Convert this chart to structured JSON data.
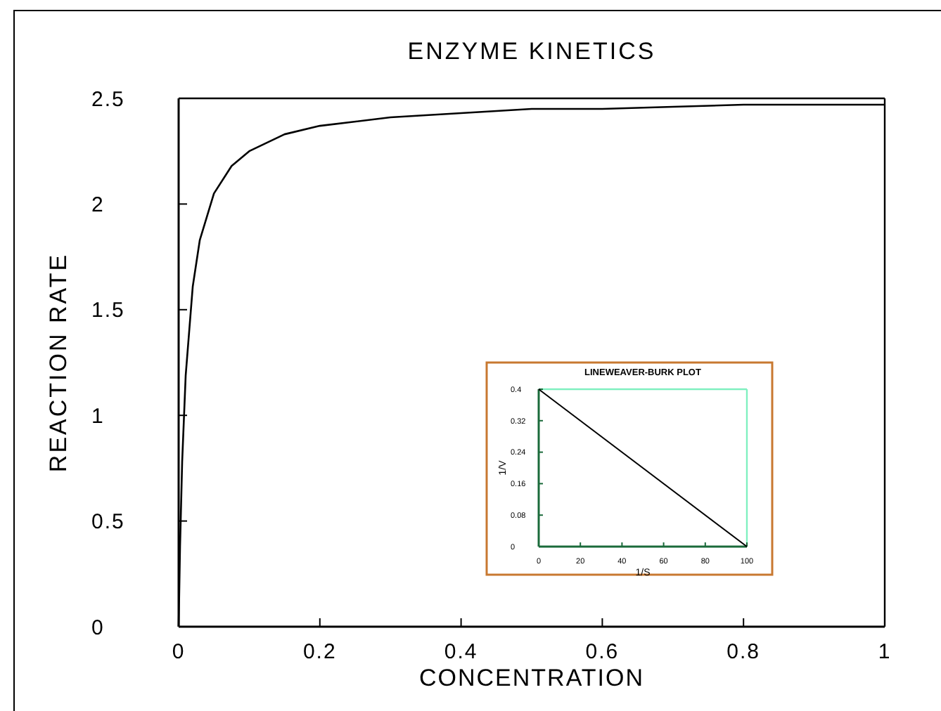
{
  "chart_data": [
    {
      "type": "line",
      "title": "ENZYME KINETICS",
      "xlabel": "CONCENTRATION",
      "ylabel": "REACTION RATE",
      "xlim": [
        0,
        1
      ],
      "ylim": [
        0,
        2.5
      ],
      "xticks": [
        0,
        0.2,
        0.4,
        0.6,
        0.8,
        1
      ],
      "yticks": [
        0,
        0.5,
        1,
        1.5,
        2,
        2.5
      ],
      "grid": false,
      "series": [
        {
          "color": "#000000",
          "x": [
            0,
            0.002,
            0.005,
            0.01,
            0.02,
            0.03,
            0.05,
            0.075,
            0.1,
            0.15,
            0.2,
            0.3,
            0.4,
            0.5,
            0.6,
            0.7,
            0.8,
            0.9,
            1.0
          ],
          "values": [
            0,
            0.38,
            0.78,
            1.19,
            1.61,
            1.83,
            2.05,
            2.18,
            2.25,
            2.33,
            2.37,
            2.41,
            2.43,
            2.45,
            2.45,
            2.46,
            2.47,
            2.47,
            2.47
          ]
        }
      ]
    },
    {
      "type": "line",
      "title": "LINEWEAVER-BURK PLOT",
      "xlabel": "1/S",
      "ylabel": "1/V",
      "xlim": [
        0,
        100
      ],
      "ylim": [
        0,
        0.4
      ],
      "xticks": [
        0,
        20,
        40,
        60,
        80,
        100
      ],
      "yticks": [
        0,
        0.08,
        0.16,
        0.24,
        0.32,
        0.4
      ],
      "grid": false,
      "series": [
        {
          "color": "#000000",
          "x": [
            0,
            100
          ],
          "values": [
            0.4,
            0
          ]
        }
      ]
    }
  ]
}
